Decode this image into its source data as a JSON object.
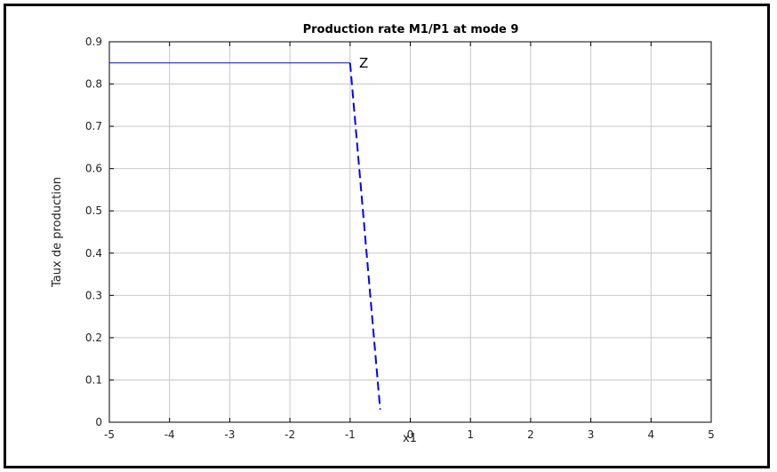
{
  "chart_data": {
    "type": "line",
    "title": "Production rate M1/P1 at mode 9",
    "xlabel": "x1",
    "ylabel": "Taux de production",
    "xlim": [
      -5,
      5
    ],
    "ylim": [
      0,
      0.9
    ],
    "xticks": [
      -5,
      -4,
      -3,
      -2,
      -1,
      0,
      1,
      2,
      3,
      4,
      5
    ],
    "yticks": [
      0,
      0.1,
      0.2,
      0.3,
      0.4,
      0.5,
      0.6,
      0.7,
      0.8,
      0.9
    ],
    "grid": true,
    "series": [
      {
        "color": "#0000ff",
        "segments": [
          {
            "style": "solid",
            "x": [
              -5,
              -1
            ],
            "y": [
              0.85,
              0.85
            ]
          },
          {
            "style": "dashed",
            "x": [
              -1,
              -0.5
            ],
            "y": [
              0.85,
              0.03
            ]
          }
        ]
      }
    ],
    "annotations": [
      {
        "text": "Z",
        "x": -0.85,
        "y": 0.85
      }
    ]
  }
}
